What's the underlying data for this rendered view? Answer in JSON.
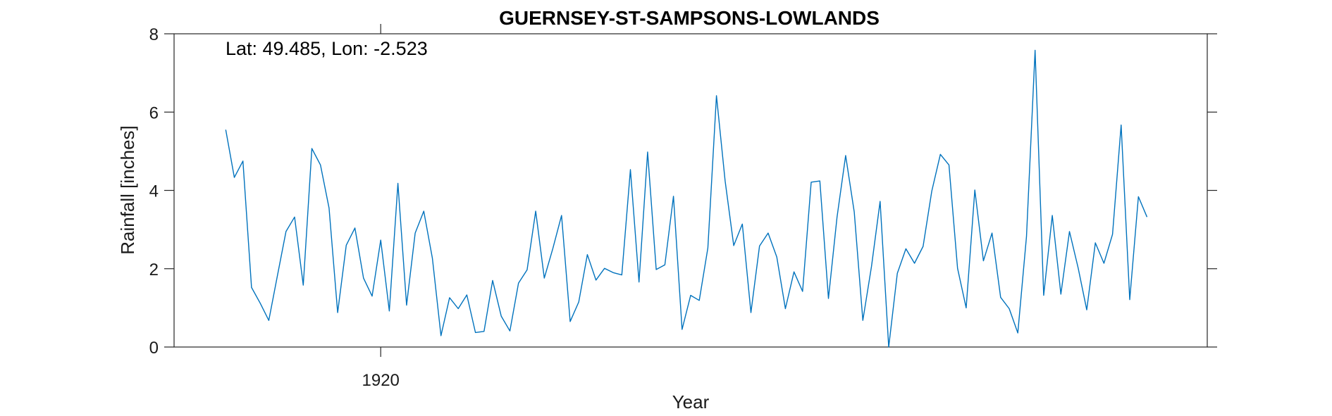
{
  "chart_data": {
    "type": "line",
    "title": "GUERNSEY-ST-SAMPSONS-LOWLANDS",
    "xlabel": "Year",
    "ylabel": "Rainfall [inches]",
    "annotation": "Lat: 49.485, Lon: -2.523",
    "xlim": [
      1896,
      2016
    ],
    "ylim": [
      0,
      8
    ],
    "x_ticks": [
      1920
    ],
    "y_ticks": [
      0,
      2,
      4,
      6,
      8
    ],
    "grid": false,
    "series": [
      {
        "color": "#0072bd",
        "x": [
          1902,
          1903,
          1904,
          1905,
          1906,
          1907,
          1908,
          1909,
          1910,
          1911,
          1912,
          1913,
          1914,
          1915,
          1916,
          1917,
          1918,
          1919,
          1920,
          1921,
          1922,
          1923,
          1924,
          1925,
          1926,
          1927,
          1928,
          1929,
          1930,
          1931,
          1932,
          1933,
          1934,
          1935,
          1936,
          1937,
          1938,
          1939,
          1940,
          1941,
          1942,
          1943,
          1944,
          1945,
          1946,
          1947,
          1948,
          1949,
          1950,
          1951,
          1952,
          1953,
          1954,
          1955,
          1956,
          1957,
          1958,
          1959,
          1960,
          1961,
          1962,
          1963,
          1964,
          1965,
          1966,
          1967,
          1968,
          1969,
          1970,
          1971,
          1972,
          1973,
          1974,
          1975,
          1976,
          1977,
          1978,
          1979,
          1980,
          1981,
          1982,
          1983,
          1984,
          1985,
          1986,
          1987,
          1988,
          1989,
          1990,
          1991,
          1992,
          1993,
          1994,
          1995,
          1996,
          1997,
          1998,
          1999,
          2000,
          2001,
          2002,
          2003,
          2004,
          2005,
          2006,
          2007,
          2008,
          2009
        ],
        "y": [
          5.55,
          4.33,
          4.75,
          1.52,
          1.12,
          0.68,
          1.82,
          2.95,
          3.32,
          1.58,
          5.07,
          4.65,
          3.55,
          0.88,
          2.6,
          3.04,
          1.76,
          1.3,
          2.73,
          0.92,
          4.18,
          1.07,
          2.91,
          3.47,
          2.27,
          0.29,
          1.26,
          0.98,
          1.33,
          0.37,
          0.4,
          1.7,
          0.79,
          0.41,
          1.63,
          1.97,
          3.47,
          1.76,
          2.52,
          3.36,
          0.65,
          1.15,
          2.36,
          1.71,
          2.01,
          1.9,
          1.84,
          4.53,
          1.66,
          4.98,
          1.98,
          2.1,
          3.85,
          0.45,
          1.32,
          1.19,
          2.53,
          6.42,
          4.24,
          2.59,
          3.14,
          0.88,
          2.58,
          2.91,
          2.3,
          0.98,
          1.92,
          1.42,
          4.21,
          4.24,
          1.24,
          3.32,
          4.89,
          3.45,
          0.68,
          2.06,
          3.72,
          0.0,
          1.88,
          2.51,
          2.14,
          2.57,
          3.98,
          4.92,
          4.65,
          2.01,
          1.0,
          4.01,
          2.2,
          2.91,
          1.27,
          0.98,
          0.36,
          2.82,
          7.58,
          1.32,
          3.36,
          1.35,
          2.95,
          2.02,
          0.95,
          2.66,
          2.14,
          2.88,
          5.67,
          1.21,
          3.84,
          3.32
        ]
      }
    ]
  }
}
